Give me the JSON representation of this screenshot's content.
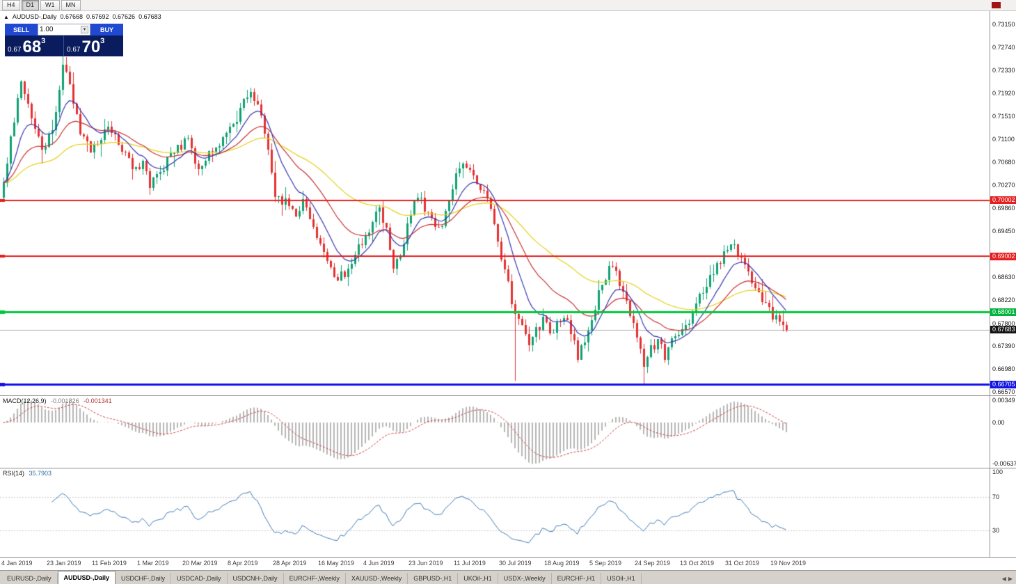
{
  "toolbar": {
    "timeframes": [
      {
        "label": "H4",
        "active": false
      },
      {
        "label": "D1",
        "active": true
      },
      {
        "label": "W1",
        "active": false
      },
      {
        "label": "MN",
        "active": false
      }
    ]
  },
  "chart": {
    "symbol": "AUDUSD-,Daily",
    "ohlc": {
      "open": "0.67668",
      "high": "0.67692",
      "low": "0.67626",
      "close": "0.67683"
    }
  },
  "trade_widget": {
    "sell_label": "SELL",
    "buy_label": "BUY",
    "volume": "1.00",
    "sell_price": {
      "base": "0.67",
      "big": "68",
      "sup": "3"
    },
    "buy_price": {
      "base": "0.67",
      "big": "70",
      "sup": "3"
    }
  },
  "price_scale": {
    "labels": [
      "0.73150",
      "0.72740",
      "0.72330",
      "0.71920",
      "0.71510",
      "0.71100",
      "0.70680",
      "0.70270",
      "0.69860",
      "0.69450",
      "0.68630",
      "0.68220",
      "0.67800",
      "0.67390",
      "0.66980",
      "0.66570"
    ],
    "badges": [
      {
        "text": "0.70002",
        "color": "#e61e1e"
      },
      {
        "text": "0.69002",
        "color": "#e61e1e"
      },
      {
        "text": "0.68001",
        "color": "#00b43c"
      },
      {
        "text": "0.67683",
        "color": "#141414"
      },
      {
        "text": "0.66705",
        "color": "#1212e6"
      }
    ]
  },
  "macd_panel": {
    "name": "MACD(12,26,9)",
    "value_main": "-0.001826",
    "value_signal": "-0.001341",
    "scale": [
      {
        "text": "0.00349",
        "value": 0.00349
      },
      {
        "text": "0.00",
        "value": 0
      },
      {
        "text": "-0.00637",
        "value": -0.00637
      }
    ]
  },
  "rsi_panel": {
    "name": "RSI(14)",
    "value": "35.7903",
    "scale": [
      {
        "text": "100",
        "value": 100
      },
      {
        "text": "70",
        "value": 70
      },
      {
        "text": "30",
        "value": 30
      }
    ]
  },
  "time_axis": [
    "4 Jan 2019",
    "23 Jan 2019",
    "11 Feb 2019",
    "1 Mar 2019",
    "20 Mar 2019",
    "8 Apr 2019",
    "28 Apr 2019",
    "16 May 2019",
    "4 Jun 2019",
    "23 Jun 2019",
    "11 Jul 2019",
    "30 Jul 2019",
    "18 Aug 2019",
    "5 Sep 2019",
    "24 Sep 2019",
    "13 Oct 2019",
    "31 Oct 2019",
    "19 Nov 2019"
  ],
  "tabs": {
    "items": [
      "EURUSD-,Daily",
      "AUDUSD-,Daily",
      "USDCHF-,Daily",
      "USDCAD-,Daily",
      "USDCNH-,Daily",
      "EURCHF-,Weekly",
      "XAUUSD-,Weekly",
      "GBPUSD-,H1",
      "UKOil-,H1",
      "USDX-,Weekly",
      "EURCHF-,H1",
      "USOil-,H1"
    ],
    "active_index": 1
  },
  "chart_data": {
    "type": "candlestick",
    "symbol": "AUDUSD-",
    "timeframe": "Daily",
    "candle_count": 226,
    "candle_spacing_px": 5,
    "price_axis": {
      "top": 0.7339,
      "bottom": 0.66511
    },
    "up_color": "#0fa173",
    "down_color": "#e53030",
    "last_close": 0.67683,
    "close_path": [
      [
        0,
        0.7025
      ],
      [
        2,
        0.711
      ],
      [
        5,
        0.721
      ],
      [
        8,
        0.715
      ],
      [
        11,
        0.7085
      ],
      [
        14,
        0.713
      ],
      [
        17,
        0.724
      ],
      [
        19,
        0.721
      ],
      [
        22,
        0.712
      ],
      [
        25,
        0.709
      ],
      [
        28,
        0.7115
      ],
      [
        31,
        0.713
      ],
      [
        34,
        0.7095
      ],
      [
        37,
        0.706
      ],
      [
        40,
        0.7065
      ],
      [
        42,
        0.703
      ],
      [
        45,
        0.7045
      ],
      [
        48,
        0.7085
      ],
      [
        51,
        0.71
      ],
      [
        53,
        0.711
      ],
      [
        56,
        0.7055
      ],
      [
        59,
        0.7085
      ],
      [
        62,
        0.7105
      ],
      [
        64,
        0.7125
      ],
      [
        66,
        0.713
      ],
      [
        69,
        0.7175
      ],
      [
        71,
        0.7195
      ],
      [
        74,
        0.715
      ],
      [
        76,
        0.709
      ],
      [
        78,
        0.701
      ],
      [
        80,
        0.7
      ],
      [
        82,
        0.6995
      ],
      [
        84,
        0.6975
      ],
      [
        86,
        0.6995
      ],
      [
        88,
        0.6975
      ],
      [
        90,
        0.694
      ],
      [
        92,
        0.6905
      ],
      [
        94,
        0.6875
      ],
      [
        96,
        0.686
      ],
      [
        98,
        0.687
      ],
      [
        100,
        0.6895
      ],
      [
        102,
        0.692
      ],
      [
        104,
        0.693
      ],
      [
        106,
        0.696
      ],
      [
        108,
        0.6985
      ],
      [
        110,
        0.695
      ],
      [
        112,
        0.687
      ],
      [
        114,
        0.6905
      ],
      [
        116,
        0.695
      ],
      [
        118,
        0.6995
      ],
      [
        120,
        0.7
      ],
      [
        122,
        0.6975
      ],
      [
        124,
        0.6945
      ],
      [
        126,
        0.696
      ],
      [
        128,
        0.7
      ],
      [
        130,
        0.704
      ],
      [
        132,
        0.7075
      ],
      [
        134,
        0.705
      ],
      [
        136,
        0.703
      ],
      [
        138,
        0.701
      ],
      [
        140,
        0.6985
      ],
      [
        142,
        0.693
      ],
      [
        144,
        0.6875
      ],
      [
        146,
        0.682
      ],
      [
        148,
        0.678
      ],
      [
        151,
        0.6745
      ],
      [
        153,
        0.6765
      ],
      [
        155,
        0.6785
      ],
      [
        157,
        0.6762
      ],
      [
        159,
        0.6775
      ],
      [
        161,
        0.679
      ],
      [
        163,
        0.6765
      ],
      [
        165,
        0.6722
      ],
      [
        167,
        0.6748
      ],
      [
        169,
        0.679
      ],
      [
        171,
        0.683
      ],
      [
        173,
        0.6862
      ],
      [
        175,
        0.6888
      ],
      [
        177,
        0.685
      ],
      [
        179,
        0.6815
      ],
      [
        181,
        0.678
      ],
      [
        183,
        0.673
      ],
      [
        184,
        0.67
      ],
      [
        186,
        0.6732
      ],
      [
        188,
        0.6748
      ],
      [
        190,
        0.6722
      ],
      [
        192,
        0.6748
      ],
      [
        194,
        0.6762
      ],
      [
        196,
        0.6772
      ],
      [
        198,
        0.68
      ],
      [
        200,
        0.6825
      ],
      [
        202,
        0.6848
      ],
      [
        204,
        0.6868
      ],
      [
        206,
        0.6892
      ],
      [
        208,
        0.6912
      ],
      [
        210,
        0.692
      ],
      [
        212,
        0.6893
      ],
      [
        214,
        0.6868
      ],
      [
        216,
        0.6843
      ],
      [
        218,
        0.682
      ],
      [
        220,
        0.68
      ],
      [
        222,
        0.6788
      ],
      [
        224,
        0.6775
      ],
      [
        225,
        0.6768
      ]
    ],
    "wick_events": [
      {
        "i": 17,
        "high": 0.7282
      },
      {
        "i": 147,
        "low": 0.6677
      },
      {
        "i": 184,
        "low": 0.667
      }
    ],
    "moving_averages": [
      {
        "period": 10,
        "color": "#3434b2"
      },
      {
        "period": 24,
        "color": "#c83030"
      },
      {
        "period": 55,
        "color": "#e6cf18"
      }
    ],
    "hlines": [
      {
        "price": 0.70002,
        "color": "#e61e1e",
        "width": 2
      },
      {
        "price": 0.69002,
        "color": "#e61e1e",
        "width": 2
      },
      {
        "price": 0.68001,
        "color": "#00c83c",
        "width": 3
      },
      {
        "price": 0.66705,
        "color": "#1212e6",
        "width": 3
      }
    ],
    "current_price_line": {
      "value": 0.67683,
      "color": "#b0b0b0"
    },
    "macd": {
      "fast": 12,
      "slow": 26,
      "signal": 9,
      "axis_max": 0.0042,
      "axis_min": -0.007,
      "display_max": 0.0035,
      "display_min": -0.0064,
      "hist_color": "#b6b6b6",
      "signal_color": "#cc3a3a"
    },
    "rsi": {
      "period": 14,
      "levels": [
        70,
        30
      ],
      "color": "#3c78b4",
      "level_color": "#c9c9c9"
    }
  }
}
